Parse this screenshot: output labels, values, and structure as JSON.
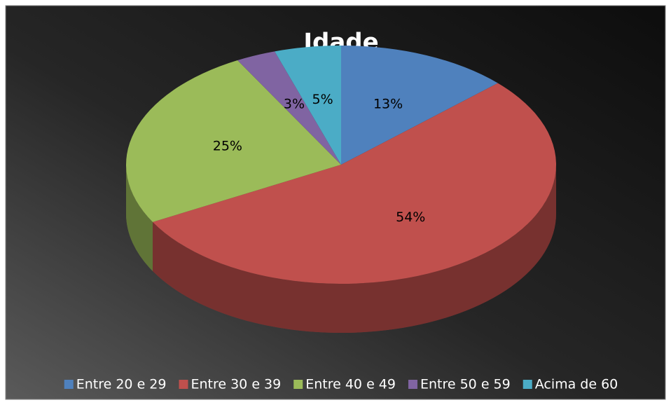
{
  "chart_data": {
    "type": "pie",
    "title": "Idade",
    "categories": [
      "Entre 20 e 29",
      "Entre 30 e 39",
      "Entre 40 e 49",
      "Entre 50 e 59",
      "Acima de 60"
    ],
    "values": [
      13,
      54,
      25,
      3,
      5
    ],
    "value_labels": [
      "13%",
      "54%",
      "25%",
      "3%",
      "5%"
    ],
    "colors": [
      "#4f81bd",
      "#c0504d",
      "#9bbb59",
      "#8064a2",
      "#4bacc6"
    ],
    "legend": "bottom"
  }
}
